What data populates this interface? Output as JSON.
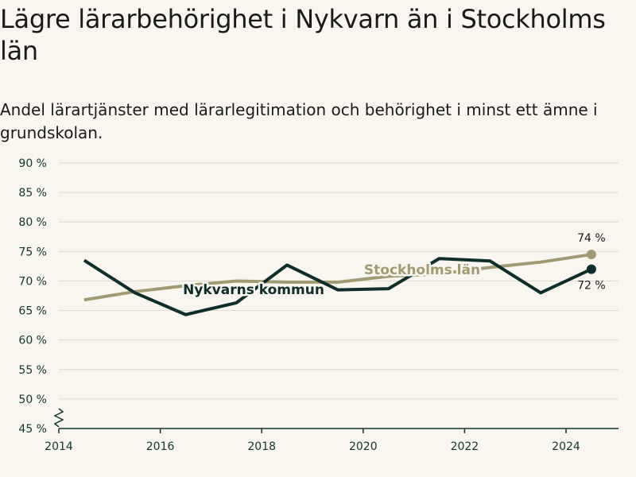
{
  "header": {
    "title": "Lägre lärarbehörighet i Nykvarn än i Stockholms län",
    "subtitle": "Andel lärartjänster med lärarlegitimation och behörighet i minst ett ämne i grundskolan."
  },
  "colors": {
    "nykvarn": "#0e2e2a",
    "stockholm": "#a09a73",
    "grid": "#dedbd0",
    "axis": "#14352f",
    "background": "#f8f6ee"
  },
  "chart_data": {
    "type": "line",
    "title": "Lägre lärarbehörighet i Nykvarn än i Stockholms län",
    "subtitle": "Andel lärartjänster med lärarlegitimation och behörighet i minst ett ämne i grundskolan.",
    "xlabel": "",
    "ylabel": "",
    "xlim": [
      2014,
      2025
    ],
    "ylim": [
      45,
      90
    ],
    "x_ticks": [
      "2014",
      "2016",
      "2018",
      "2020",
      "2022",
      "2024"
    ],
    "y_ticks": [
      "45 %",
      "50 %",
      "55 %",
      "60 %",
      "65 %",
      "70 %",
      "75 %",
      "80 %",
      "85 %",
      "90 %"
    ],
    "grid": true,
    "y_axis_break": true,
    "series": [
      {
        "name": "Nykvarns kommun",
        "x": [
          2014.5,
          2015.5,
          2016.5,
          2017.5,
          2018.5,
          2019.5,
          2020.5,
          2021.5,
          2022.5,
          2023.5,
          2024.5
        ],
        "values": [
          73.5,
          68.0,
          64.3,
          66.3,
          72.7,
          68.5,
          68.7,
          73.8,
          73.4,
          68.0,
          72.0
        ],
        "end_label": "72 %"
      },
      {
        "name": "Stockholms län",
        "x": [
          2014.5,
          2015.5,
          2016.5,
          2017.5,
          2018.5,
          2019.5,
          2020.5,
          2021.5,
          2022.5,
          2023.5,
          2024.5
        ],
        "values": [
          66.8,
          68.2,
          69.2,
          70.0,
          69.8,
          69.8,
          70.8,
          71.2,
          72.3,
          73.2,
          74.5
        ],
        "end_label": "74 %"
      }
    ]
  }
}
